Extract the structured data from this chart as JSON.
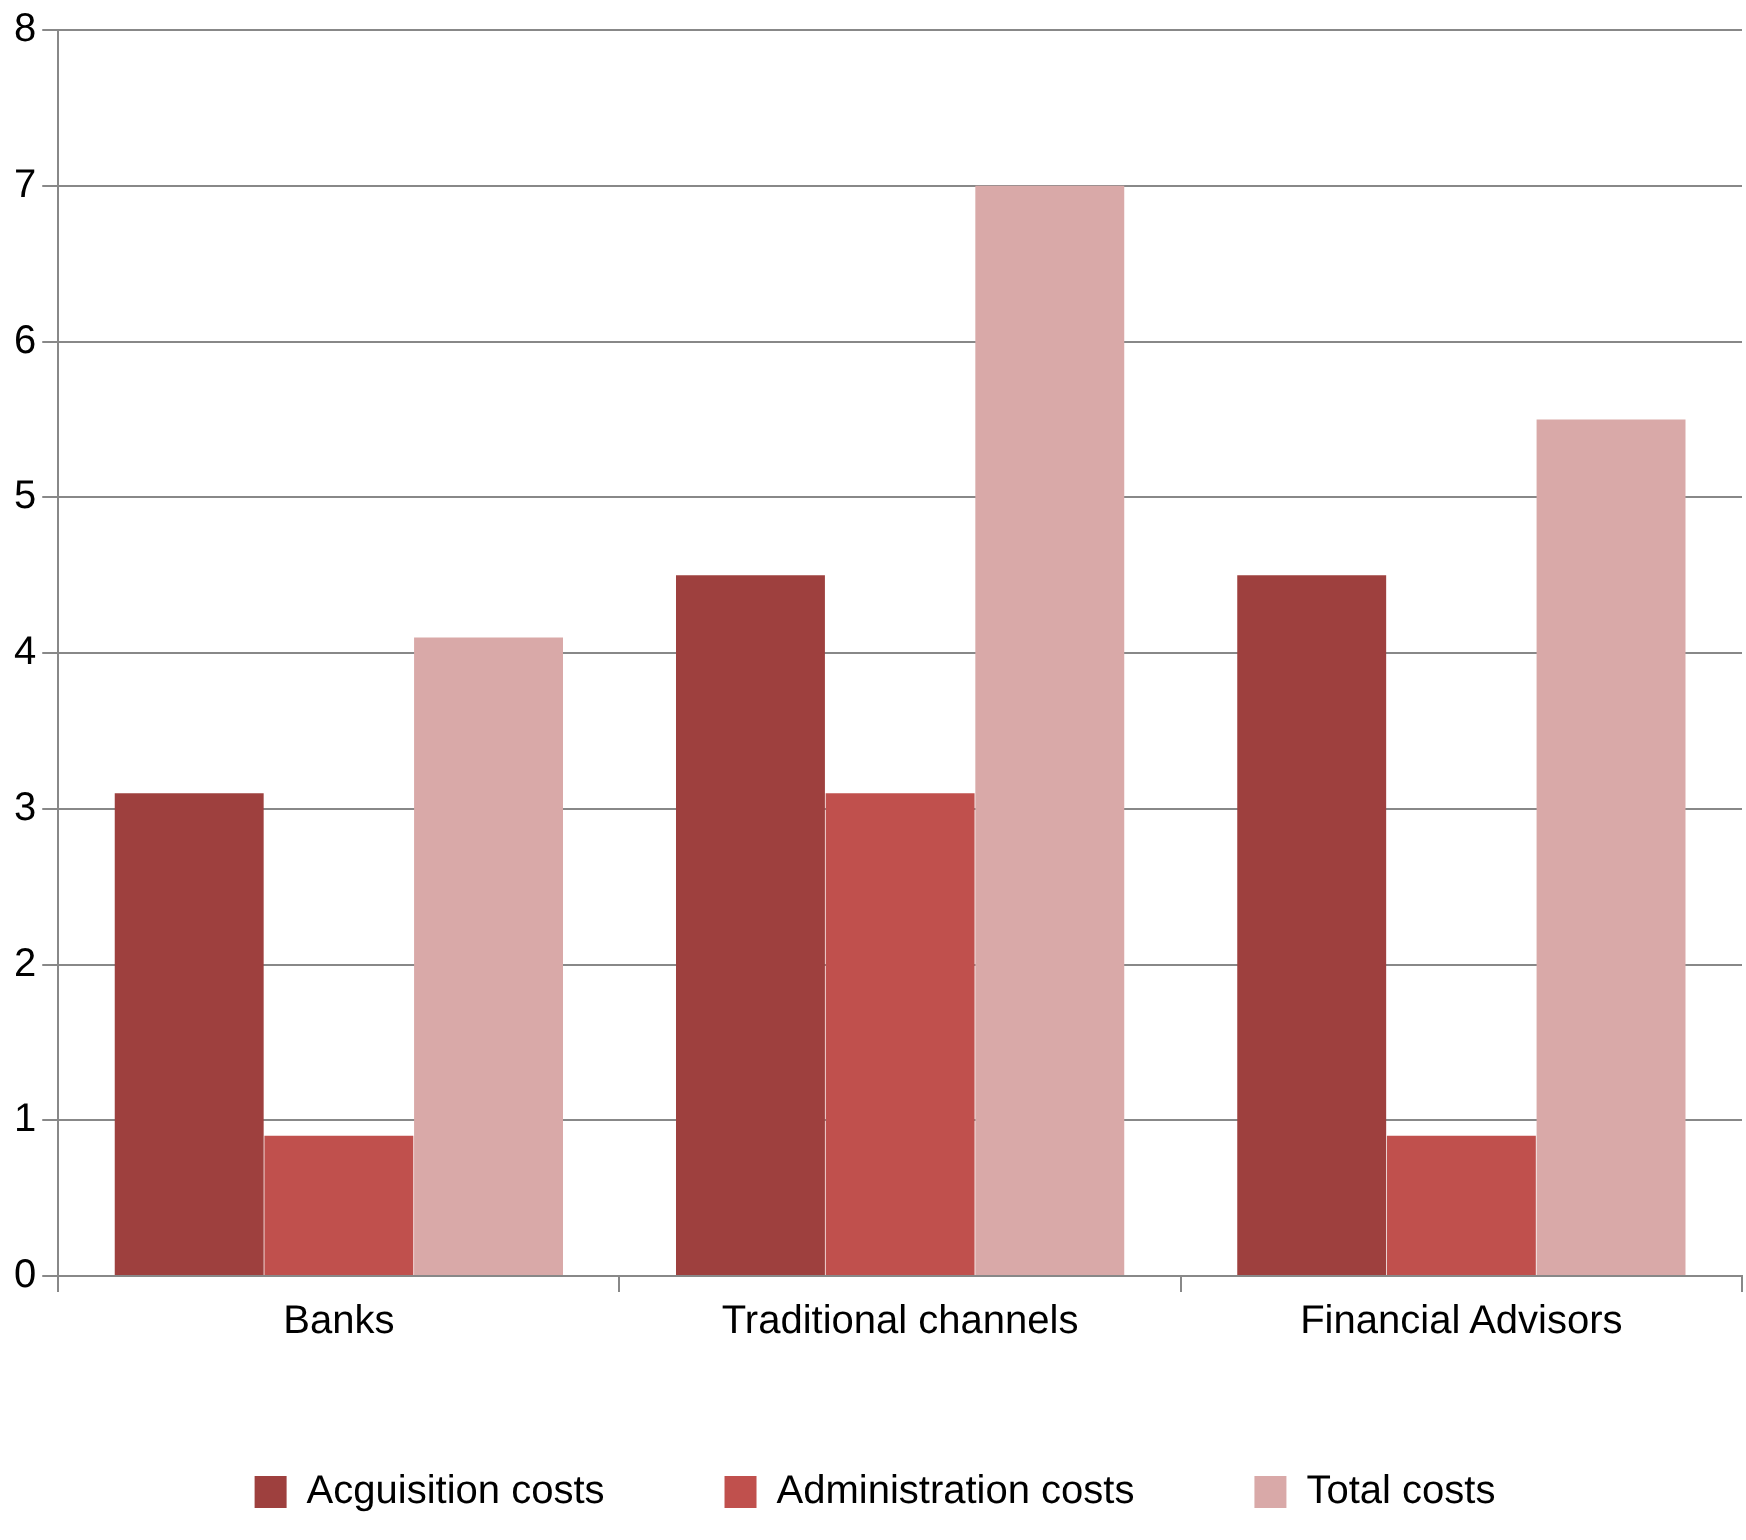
{
  "chart_data": {
    "type": "bar",
    "categories": [
      "Banks",
      "Traditional channels",
      "Financial Advisors"
    ],
    "series": [
      {
        "name": "Acguisition costs",
        "color": "#9e403e",
        "values": [
          3.1,
          4.5,
          4.5
        ]
      },
      {
        "name": "Administration costs",
        "color": "#c0504d",
        "values": [
          0.9,
          3.1,
          0.9
        ]
      },
      {
        "name": "Total costs",
        "color": "#d9a9a8",
        "values": [
          4.1,
          7,
          5.5
        ]
      }
    ],
    "ylim": [
      0,
      8
    ],
    "yticks": [
      0,
      1,
      2,
      3,
      4,
      5,
      6,
      7,
      8
    ],
    "grid": "y",
    "legend": "bottom"
  }
}
